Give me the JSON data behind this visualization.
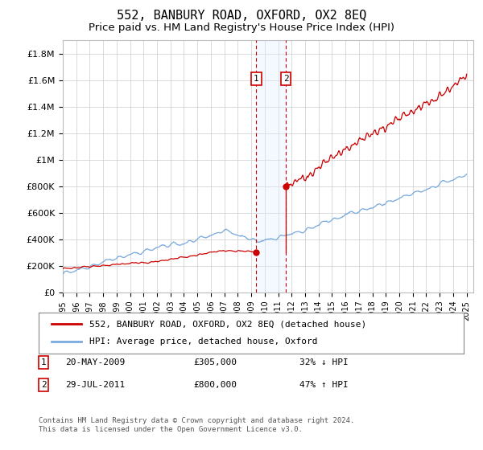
{
  "title": "552, BANBURY ROAD, OXFORD, OX2 8EQ",
  "subtitle": "Price paid vs. HM Land Registry's House Price Index (HPI)",
  "ylabel_ticks": [
    "£0",
    "£200K",
    "£400K",
    "£600K",
    "£800K",
    "£1M",
    "£1.2M",
    "£1.4M",
    "£1.6M",
    "£1.8M"
  ],
  "ytick_values": [
    0,
    200000,
    400000,
    600000,
    800000,
    1000000,
    1200000,
    1400000,
    1600000,
    1800000
  ],
  "ylim": [
    0,
    1900000
  ],
  "xlim_start": 1995.0,
  "xlim_end": 2025.5,
  "transaction1_date": 2009.38,
  "transaction1_price": 305000,
  "transaction1_label": "20-MAY-2009",
  "transaction1_pct": "32% ↓ HPI",
  "transaction2_date": 2011.57,
  "transaction2_price": 800000,
  "transaction2_label": "29-JUL-2011",
  "transaction2_pct": "47% ↑ HPI",
  "line_color_property": "#cc0000",
  "line_color_hpi": "#7aaadd",
  "marker_box_color": "#cc0000",
  "vline_color": "#cc0000",
  "shade_color": "#ddeeff",
  "legend_property_label": "552, BANBURY ROAD, OXFORD, OX2 8EQ (detached house)",
  "legend_hpi_label": "HPI: Average price, detached house, Oxford",
  "footnote": "Contains HM Land Registry data © Crown copyright and database right 2024.\nThis data is licensed under the Open Government Licence v3.0.",
  "title_fontsize": 11,
  "subtitle_fontsize": 9.5,
  "background_color": "#ffffff"
}
